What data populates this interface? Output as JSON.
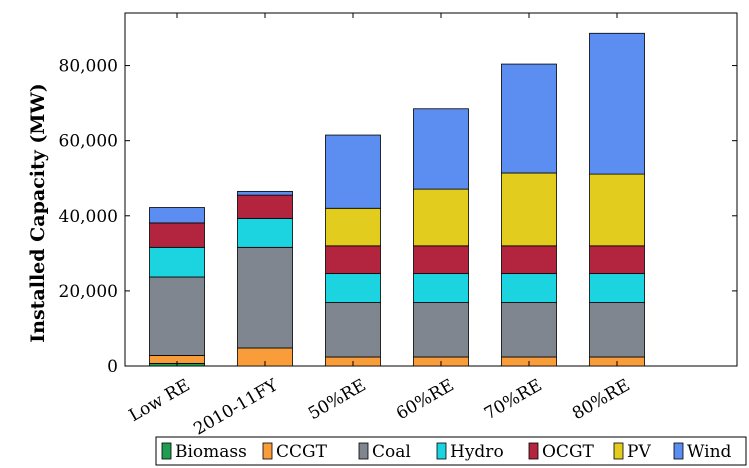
{
  "chart_data": {
    "type": "bar",
    "stacked": true,
    "title": "",
    "xlabel": "",
    "ylabel": "Installed Capacity (MW)",
    "ylim": [
      0,
      94000
    ],
    "yticks": [
      0,
      20000,
      40000,
      60000,
      80000
    ],
    "ytick_labels": [
      "0",
      "20,000",
      "40,000",
      "60,000",
      "80,000"
    ],
    "grid": false,
    "legend_position": "bottom",
    "categories": [
      "Low RE",
      "2010-11FY",
      "50%RE",
      "60%RE",
      "70%RE",
      "80%RE"
    ],
    "series": [
      {
        "name": "Biomass",
        "color": "#1e9e50",
        "values": [
          700,
          0,
          0,
          0,
          0,
          0
        ]
      },
      {
        "name": "CCGT",
        "color": "#f99d3a",
        "values": [
          2100,
          4800,
          2400,
          2400,
          2400,
          2400
        ]
      },
      {
        "name": "Coal",
        "color": "#7f8690",
        "values": [
          20900,
          26800,
          14500,
          14500,
          14500,
          14500
        ]
      },
      {
        "name": "Hydro",
        "color": "#1cd3e0",
        "values": [
          7900,
          7700,
          7700,
          7700,
          7700,
          7700
        ]
      },
      {
        "name": "OCGT",
        "color": "#b3243e",
        "values": [
          6500,
          6200,
          7400,
          7400,
          7400,
          7400
        ]
      },
      {
        "name": "PV",
        "color": "#e2cc1e",
        "values": [
          0,
          0,
          10000,
          15100,
          19400,
          19100
        ]
      },
      {
        "name": "Wind",
        "color": "#5b8ef0",
        "values": [
          4100,
          1000,
          19500,
          21400,
          29000,
          37500
        ]
      }
    ]
  }
}
